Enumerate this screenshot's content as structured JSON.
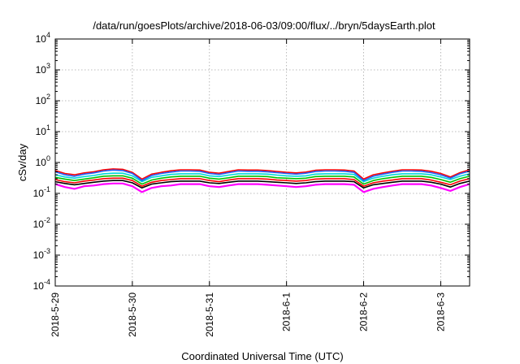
{
  "chart_data": {
    "type": "line",
    "title": "/data/run/goesPlots/archive/2018-06-03/09:00/flux/../bryn/5daysEarth.plot",
    "xlabel": "Coordinated Universal Time (UTC)",
    "ylabel": "cSv/day",
    "x_range": [
      "2018-05-29T00:00",
      "2018-06-03T09:00"
    ],
    "x_ticks": [
      "2018-5-29",
      "2018-5-30",
      "2018-5-31",
      "2018-6-1",
      "2018-6-2",
      "2018-6-3"
    ],
    "y_scale": "log",
    "y_range": [
      0.0001,
      10000
    ],
    "y_ticks": [
      {
        "base": "10",
        "exp": "-4"
      },
      {
        "base": "10",
        "exp": "-3"
      },
      {
        "base": "10",
        "exp": "-2"
      },
      {
        "base": "10",
        "exp": "-1"
      },
      {
        "base": "10",
        "exp": "0"
      },
      {
        "base": "10",
        "exp": "1"
      },
      {
        "base": "10",
        "exp": "2"
      },
      {
        "base": "10",
        "exp": "3"
      },
      {
        "base": "10",
        "exp": "4"
      }
    ],
    "grid": true,
    "x": [
      "2018-05-29T00:00",
      "2018-05-29T03:00",
      "2018-05-29T06:00",
      "2018-05-29T09:00",
      "2018-05-29T12:00",
      "2018-05-29T15:00",
      "2018-05-29T18:00",
      "2018-05-29T21:00",
      "2018-05-30T00:00",
      "2018-05-30T03:00",
      "2018-05-30T06:00",
      "2018-05-30T09:00",
      "2018-05-30T12:00",
      "2018-05-30T15:00",
      "2018-05-30T18:00",
      "2018-05-30T21:00",
      "2018-05-31T00:00",
      "2018-05-31T03:00",
      "2018-05-31T06:00",
      "2018-05-31T09:00",
      "2018-05-31T12:00",
      "2018-05-31T15:00",
      "2018-05-31T18:00",
      "2018-05-31T21:00",
      "2018-06-01T00:00",
      "2018-06-01T03:00",
      "2018-06-01T06:00",
      "2018-06-01T09:00",
      "2018-06-01T12:00",
      "2018-06-01T15:00",
      "2018-06-01T18:00",
      "2018-06-01T21:00",
      "2018-06-02T00:00",
      "2018-06-02T03:00",
      "2018-06-02T06:00",
      "2018-06-02T09:00",
      "2018-06-02T12:00",
      "2018-06-02T15:00",
      "2018-06-02T18:00",
      "2018-06-02T21:00",
      "2018-06-03T00:00",
      "2018-06-03T03:00",
      "2018-06-03T06:00",
      "2018-06-03T09:00"
    ],
    "series": [
      {
        "color": "#ff00ff",
        "values": [
          0.2,
          0.16,
          0.14,
          0.17,
          0.18,
          0.2,
          0.21,
          0.21,
          0.17,
          0.11,
          0.15,
          0.17,
          0.18,
          0.2,
          0.2,
          0.2,
          0.17,
          0.16,
          0.18,
          0.2,
          0.2,
          0.2,
          0.19,
          0.18,
          0.17,
          0.16,
          0.17,
          0.19,
          0.2,
          0.2,
          0.2,
          0.19,
          0.11,
          0.14,
          0.16,
          0.18,
          0.2,
          0.2,
          0.2,
          0.18,
          0.15,
          0.12,
          0.16,
          0.2
        ]
      },
      {
        "color": "#ff0000",
        "values": [
          0.28,
          0.24,
          0.22,
          0.25,
          0.27,
          0.3,
          0.31,
          0.31,
          0.26,
          0.17,
          0.23,
          0.26,
          0.28,
          0.3,
          0.3,
          0.3,
          0.26,
          0.24,
          0.27,
          0.3,
          0.3,
          0.3,
          0.29,
          0.27,
          0.26,
          0.25,
          0.26,
          0.29,
          0.3,
          0.3,
          0.3,
          0.28,
          0.17,
          0.22,
          0.25,
          0.27,
          0.3,
          0.3,
          0.3,
          0.27,
          0.23,
          0.19,
          0.25,
          0.3
        ]
      },
      {
        "color": "#000000",
        "values": [
          0.24,
          0.21,
          0.19,
          0.21,
          0.23,
          0.25,
          0.26,
          0.26,
          0.22,
          0.15,
          0.2,
          0.22,
          0.24,
          0.25,
          0.25,
          0.25,
          0.22,
          0.21,
          0.23,
          0.25,
          0.25,
          0.25,
          0.24,
          0.23,
          0.22,
          0.21,
          0.22,
          0.24,
          0.25,
          0.25,
          0.25,
          0.24,
          0.15,
          0.19,
          0.21,
          0.23,
          0.25,
          0.25,
          0.25,
          0.23,
          0.2,
          0.16,
          0.21,
          0.25
        ]
      },
      {
        "color": "#00c000",
        "values": [
          0.33,
          0.29,
          0.26,
          0.29,
          0.32,
          0.36,
          0.37,
          0.37,
          0.31,
          0.2,
          0.27,
          0.31,
          0.34,
          0.36,
          0.36,
          0.36,
          0.31,
          0.29,
          0.32,
          0.36,
          0.36,
          0.36,
          0.35,
          0.32,
          0.31,
          0.3,
          0.31,
          0.35,
          0.36,
          0.36,
          0.36,
          0.34,
          0.2,
          0.26,
          0.3,
          0.33,
          0.36,
          0.36,
          0.36,
          0.33,
          0.28,
          0.23,
          0.3,
          0.36
        ]
      },
      {
        "color": "#00d8d8",
        "values": [
          0.4,
          0.34,
          0.31,
          0.35,
          0.38,
          0.43,
          0.45,
          0.45,
          0.37,
          0.24,
          0.33,
          0.37,
          0.41,
          0.43,
          0.43,
          0.43,
          0.37,
          0.35,
          0.39,
          0.43,
          0.43,
          0.43,
          0.42,
          0.39,
          0.37,
          0.36,
          0.37,
          0.42,
          0.43,
          0.43,
          0.43,
          0.41,
          0.24,
          0.31,
          0.36,
          0.4,
          0.43,
          0.43,
          0.43,
          0.4,
          0.34,
          0.28,
          0.36,
          0.43
        ]
      },
      {
        "color": "#ff0000",
        "values": [
          0.55,
          0.44,
          0.4,
          0.46,
          0.5,
          0.58,
          0.62,
          0.6,
          0.48,
          0.29,
          0.42,
          0.48,
          0.54,
          0.58,
          0.58,
          0.57,
          0.48,
          0.45,
          0.51,
          0.58,
          0.57,
          0.57,
          0.55,
          0.51,
          0.48,
          0.46,
          0.49,
          0.56,
          0.58,
          0.58,
          0.57,
          0.53,
          0.29,
          0.4,
          0.46,
          0.52,
          0.58,
          0.58,
          0.57,
          0.52,
          0.44,
          0.34,
          0.47,
          0.58
        ]
      },
      {
        "color": "#2060ff",
        "values": [
          0.5,
          0.4,
          0.36,
          0.42,
          0.46,
          0.53,
          0.57,
          0.55,
          0.44,
          0.26,
          0.38,
          0.44,
          0.49,
          0.53,
          0.53,
          0.52,
          0.44,
          0.41,
          0.47,
          0.53,
          0.52,
          0.52,
          0.5,
          0.47,
          0.44,
          0.42,
          0.45,
          0.51,
          0.53,
          0.53,
          0.52,
          0.48,
          0.26,
          0.36,
          0.42,
          0.48,
          0.53,
          0.53,
          0.52,
          0.47,
          0.4,
          0.31,
          0.43,
          0.53
        ]
      }
    ]
  }
}
